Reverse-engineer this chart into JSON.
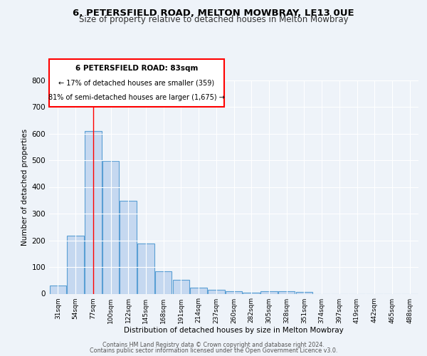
{
  "title1": "6, PETERSFIELD ROAD, MELTON MOWBRAY, LE13 0UE",
  "title2": "Size of property relative to detached houses in Melton Mowbray",
  "xlabel": "Distribution of detached houses by size in Melton Mowbray",
  "ylabel": "Number of detached properties",
  "categories": [
    "31sqm",
    "54sqm",
    "77sqm",
    "100sqm",
    "122sqm",
    "145sqm",
    "168sqm",
    "191sqm",
    "214sqm",
    "237sqm",
    "260sqm",
    "282sqm",
    "305sqm",
    "328sqm",
    "351sqm",
    "374sqm",
    "397sqm",
    "419sqm",
    "442sqm",
    "465sqm",
    "488sqm"
  ],
  "values": [
    32,
    218,
    610,
    497,
    348,
    188,
    83,
    52,
    22,
    15,
    10,
    5,
    10,
    10,
    8,
    0,
    0,
    0,
    0,
    0,
    0
  ],
  "bar_color": "#c5d8f0",
  "bar_edge_color": "#5a9fd4",
  "red_line_x": 2,
  "annotation_box_text": [
    "6 PETERSFIELD ROAD: 83sqm",
    "← 17% of detached houses are smaller (359)",
    "81% of semi-detached houses are larger (1,675) →"
  ],
  "ylim": [
    0,
    800
  ],
  "yticks": [
    0,
    100,
    200,
    300,
    400,
    500,
    600,
    700,
    800
  ],
  "footer_line1": "Contains HM Land Registry data © Crown copyright and database right 2024.",
  "footer_line2": "Contains public sector information licensed under the Open Government Licence v3.0.",
  "bg_color": "#eef3f9",
  "plot_bg_color": "#eef3f9"
}
